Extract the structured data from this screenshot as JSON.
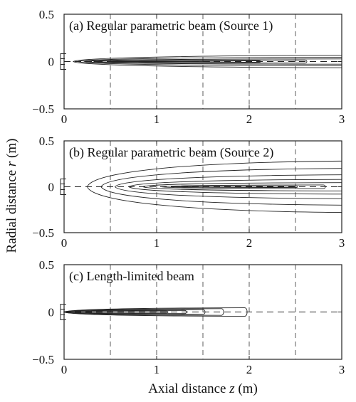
{
  "figure": {
    "y_axis_label_prefix": "Radial distance ",
    "y_axis_label_var": "r",
    "y_axis_label_unit": " (m)",
    "x_axis_label_prefix": "Axial distance ",
    "x_axis_label_var": "z",
    "x_axis_label_unit": " (m)"
  },
  "chart_data": [
    {
      "type": "contour",
      "title": "(a) Regular parametric beam (Source 1)",
      "xlabel": "Axial distance z (m)",
      "ylabel": "Radial distance r (m)",
      "xlim": [
        0,
        3
      ],
      "ylim": [
        -0.5,
        0.5
      ],
      "x_ticks": [
        0,
        1,
        2,
        3
      ],
      "x_tick_labels": [
        "0",
        "1",
        "2",
        "3"
      ],
      "y_ticks": [
        -0.5,
        0,
        0.5
      ],
      "y_tick_labels": [
        "−0.5",
        "0",
        "0.5"
      ],
      "grid": {
        "vertical_dashed_at_z": [
          0.5,
          1,
          1.5,
          2,
          2.5
        ],
        "axis_dashed_at_r": 0
      },
      "contours": [
        {
          "z_start": 0.1,
          "z_end": 3.0,
          "r_halfwidth_at_end": 0.065,
          "open_end": true
        },
        {
          "z_start": 0.15,
          "z_end": 3.0,
          "r_halfwidth_at_end": 0.045,
          "open_end": true
        },
        {
          "z_start": 0.22,
          "z_end": 3.0,
          "r_halfwidth_at_end": 0.028,
          "open_end": true
        },
        {
          "z_start": 0.32,
          "z_end": 2.6,
          "r_halfwidth_at_end": 0.016,
          "open_end": false
        },
        {
          "z_start": 0.5,
          "z_end": 2.1,
          "r_halfwidth_at_end": 0.008,
          "open_end": false
        },
        {
          "z_start": 0.8,
          "z_end": 1.55,
          "r_halfwidth_at_end": 0.004,
          "open_end": false
        }
      ]
    },
    {
      "type": "contour",
      "title": "(b) Regular parametric beam (Source 2)",
      "xlabel": "Axial distance z (m)",
      "ylabel": "Radial distance r (m)",
      "xlim": [
        0,
        3
      ],
      "ylim": [
        -0.5,
        0.5
      ],
      "x_ticks": [
        0,
        1,
        2,
        3
      ],
      "x_tick_labels": [
        "0",
        "1",
        "2",
        "3"
      ],
      "y_ticks": [
        -0.5,
        0,
        0.5
      ],
      "y_tick_labels": [
        "−0.5",
        "0",
        "0.5"
      ],
      "grid": {
        "vertical_dashed_at_z": [
          0.5,
          1,
          1.5,
          2,
          2.5
        ],
        "axis_dashed_at_r": 0
      },
      "contours": [
        {
          "z_start": 0.25,
          "z_end": 3.0,
          "r_halfwidth_at_end": 0.28,
          "open_end": true
        },
        {
          "z_start": 0.4,
          "z_end": 3.0,
          "r_halfwidth_at_end": 0.2,
          "open_end": true
        },
        {
          "z_start": 0.55,
          "z_end": 3.0,
          "r_halfwidth_at_end": 0.13,
          "open_end": true
        },
        {
          "z_start": 0.7,
          "z_end": 3.0,
          "r_halfwidth_at_end": 0.08,
          "open_end": true
        },
        {
          "z_start": 0.85,
          "z_end": 3.0,
          "r_halfwidth_at_end": 0.045,
          "open_end": true
        },
        {
          "z_start": 1.05,
          "z_end": 2.8,
          "r_halfwidth_at_end": 0.02,
          "open_end": false
        },
        {
          "z_start": 1.2,
          "z_end": 2.5,
          "r_halfwidth_at_end": 0.008,
          "open_end": false
        }
      ]
    },
    {
      "type": "contour",
      "title": "(c) Length-limited beam",
      "xlabel": "Axial distance z (m)",
      "ylabel": "Radial distance r (m)",
      "xlim": [
        0,
        3
      ],
      "ylim": [
        -0.5,
        0.5
      ],
      "x_ticks": [
        0,
        1,
        2,
        3
      ],
      "x_tick_labels": [
        "0",
        "1",
        "2",
        "3"
      ],
      "y_ticks": [
        -0.5,
        0,
        0.5
      ],
      "y_tick_labels": [
        "−0.5",
        "0",
        "0.5"
      ],
      "grid": {
        "vertical_dashed_at_z": [
          0.5,
          1,
          1.5,
          2,
          2.5
        ],
        "axis_dashed_at_r": 0
      },
      "contours": [
        {
          "z_start": 0.0,
          "z_end": 1.95,
          "r_halfwidth_at_end": 0.045,
          "open_end": false
        },
        {
          "z_start": 0.0,
          "z_end": 1.7,
          "r_halfwidth_at_end": 0.035,
          "open_end": false
        },
        {
          "z_start": 0.0,
          "z_end": 1.5,
          "r_halfwidth_at_end": 0.025,
          "open_end": false
        },
        {
          "z_start": 0.0,
          "z_end": 1.3,
          "r_halfwidth_at_end": 0.017,
          "open_end": false
        },
        {
          "z_start": 0.0,
          "z_end": 1.1,
          "r_halfwidth_at_end": 0.01,
          "open_end": false
        }
      ]
    }
  ]
}
